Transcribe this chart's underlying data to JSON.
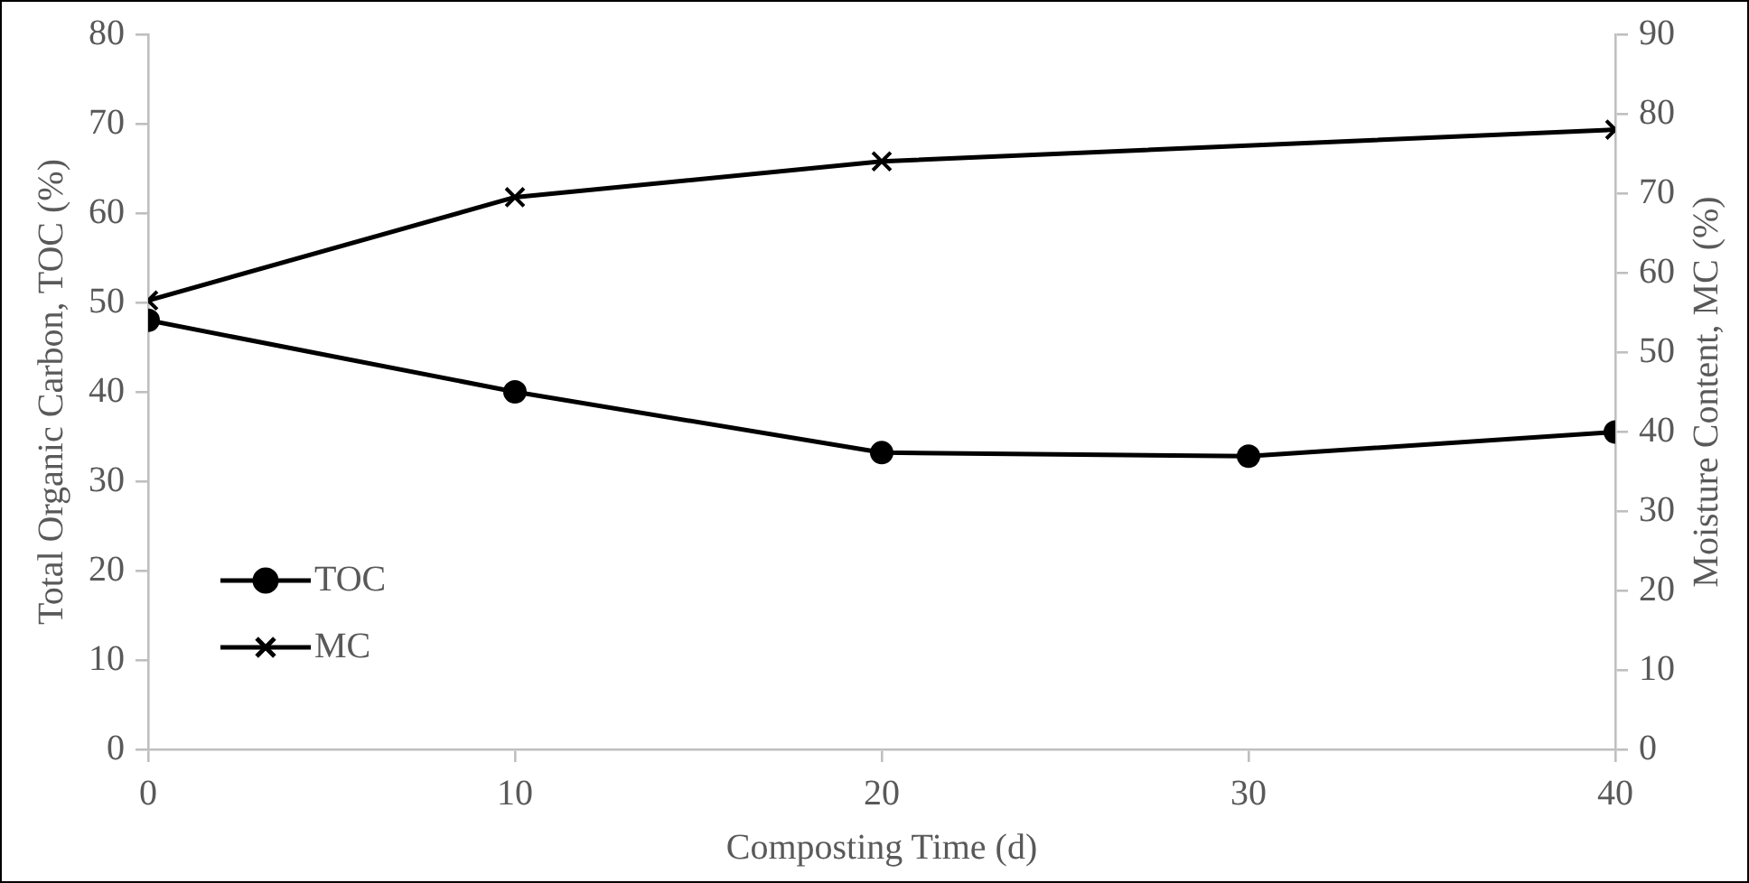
{
  "chart_data": {
    "type": "line",
    "xlabel": "Composting Time (d)",
    "ylabel": "Total Organic Carbon, TOC (%)",
    "y2label": "Moisture Content, MC (%)",
    "x": [
      0,
      10,
      20,
      30,
      40
    ],
    "series": [
      {
        "name": "TOC",
        "color": "#000000",
        "marker": "circle",
        "values": [
          48.0,
          40.0,
          33.2,
          32.8,
          35.5
        ]
      },
      {
        "name": "MC",
        "color": "#000000",
        "marker": "cross",
        "axis": "y2",
        "x": [
          0,
          10,
          20,
          40
        ],
        "values": [
          56.5,
          69.5,
          74.0,
          78.0
        ]
      }
    ],
    "xlim": [
      0,
      40
    ],
    "xticks": [
      0,
      10,
      20,
      30,
      40
    ],
    "ylim": [
      0,
      80
    ],
    "yticks": [
      0,
      10,
      20,
      30,
      40,
      50,
      60,
      70,
      80
    ],
    "y2lim": [
      0,
      90
    ],
    "y2ticks": [
      0,
      10,
      20,
      30,
      40,
      50,
      60,
      70,
      80,
      90
    ],
    "grid": false,
    "legend": "bottom left",
    "line_style": "solid"
  }
}
